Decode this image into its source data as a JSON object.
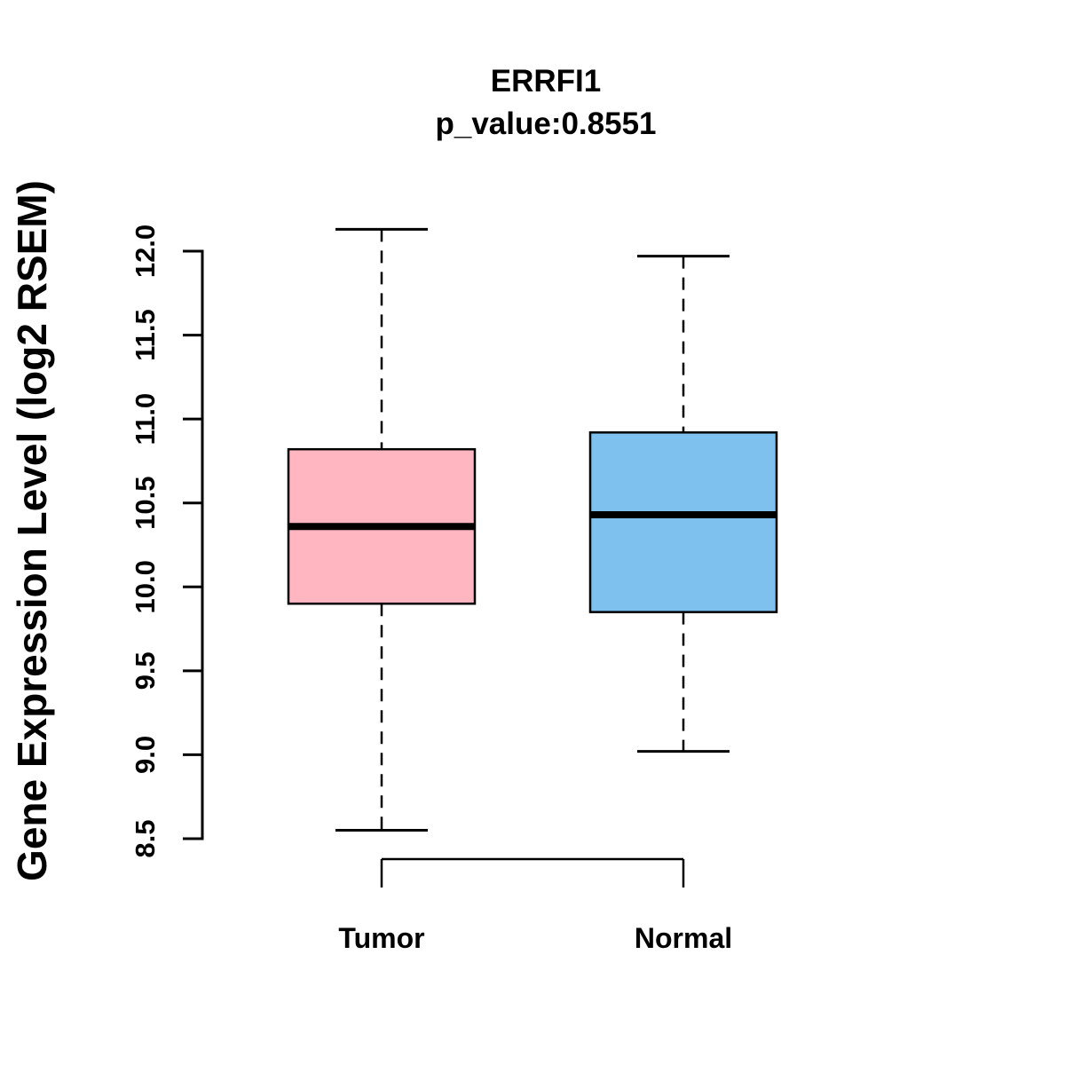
{
  "chart_data": {
    "type": "boxplot",
    "title": "ERRFI1",
    "subtitle": "p_value:0.8551",
    "ylabel": "Gene Expression Level (log2 RSEM)",
    "ylim": [
      8.5,
      12.0
    ],
    "yticks": [
      8.5,
      9.0,
      9.5,
      10.0,
      10.5,
      11.0,
      11.5,
      12.0
    ],
    "grid": false,
    "legend": "none",
    "groups": [
      {
        "label": "Tumor",
        "color": "#FFB6C1",
        "whisker_low": 8.55,
        "q1": 9.9,
        "median": 10.36,
        "q3": 10.82,
        "whisker_high": 12.13
      },
      {
        "label": "Normal",
        "color": "#7EC0EE",
        "whisker_low": 9.02,
        "q1": 9.85,
        "median": 10.43,
        "q3": 10.92,
        "whisker_high": 11.97
      }
    ]
  }
}
